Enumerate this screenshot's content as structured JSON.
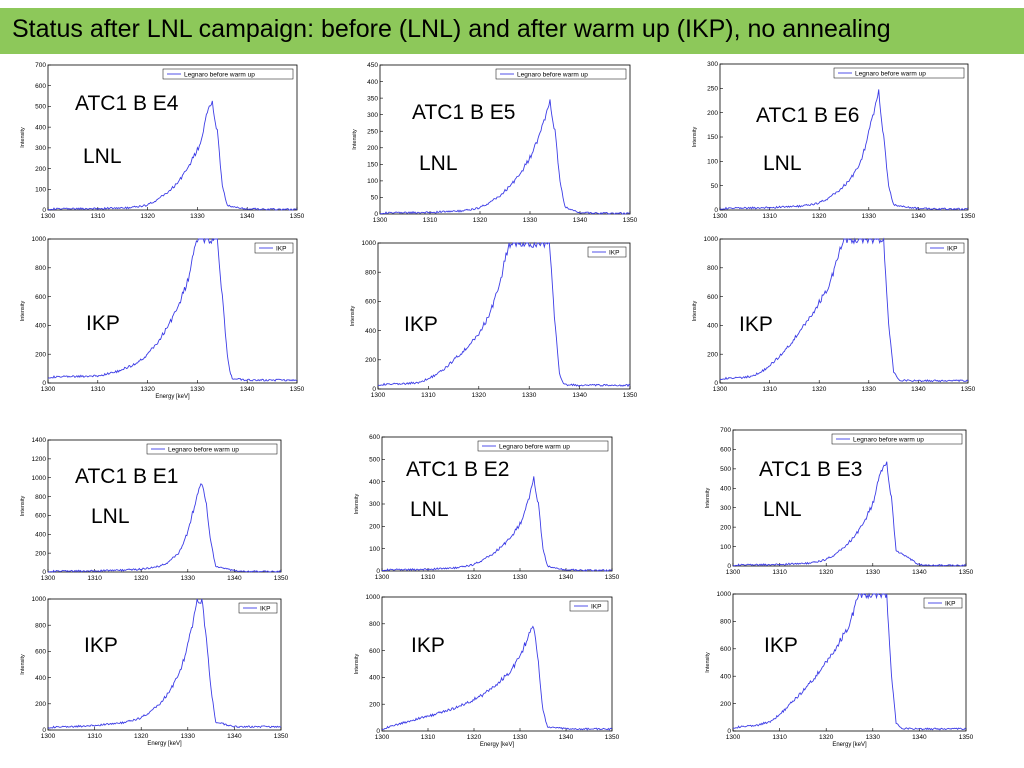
{
  "title": "Status after LNL campaign: before (LNL) and after warm up (IKP), no annealing",
  "colors": {
    "title_bar": "#8dc85a",
    "series": "#3d3de6"
  },
  "chart_data": [
    {
      "type": "line",
      "overlay_labels": [
        "ATC1 B E4",
        "LNL"
      ],
      "xlabel": "",
      "ylabel": "Intensity",
      "xlim": [
        1300,
        1350
      ],
      "ylim": [
        0,
        700
      ],
      "xticks": [
        1300,
        1310,
        1320,
        1330,
        1340,
        1350
      ],
      "yticks": [
        0,
        100,
        200,
        300,
        400,
        500,
        600,
        700
      ],
      "legend": "Legnaro before warm up",
      "legend_position": "top-right",
      "series": [
        {
          "name": "Legnaro before warm up",
          "x": [
            1300,
            1305,
            1310,
            1315,
            1318,
            1320,
            1322,
            1324,
            1326,
            1328,
            1330,
            1331,
            1332,
            1333,
            1334,
            1335,
            1336,
            1340,
            1345,
            1350
          ],
          "y": [
            5,
            6,
            7,
            9,
            15,
            25,
            50,
            85,
            130,
            200,
            290,
            350,
            480,
            510,
            380,
            120,
            20,
            5,
            3,
            3
          ]
        }
      ]
    },
    {
      "type": "line",
      "overlay_labels": [
        "ATC1 B E5",
        "LNL"
      ],
      "xlabel": "",
      "ylabel": "Intensity",
      "xlim": [
        1300,
        1350
      ],
      "ylim": [
        0,
        450
      ],
      "xticks": [
        1300,
        1310,
        1320,
        1330,
        1340,
        1350
      ],
      "yticks": [
        0,
        50,
        100,
        150,
        200,
        250,
        300,
        350,
        400,
        450
      ],
      "legend": "Legnaro before warm up",
      "legend_position": "top-right",
      "series": [
        {
          "name": "Legnaro before warm up",
          "x": [
            1300,
            1305,
            1310,
            1315,
            1318,
            1320,
            1322,
            1324,
            1326,
            1328,
            1330,
            1332,
            1333,
            1334,
            1335,
            1336,
            1337,
            1340,
            1345,
            1350
          ],
          "y": [
            3,
            4,
            5,
            8,
            12,
            20,
            35,
            55,
            85,
            120,
            170,
            240,
            290,
            335,
            250,
            100,
            20,
            4,
            2,
            2
          ]
        }
      ]
    },
    {
      "type": "line",
      "overlay_labels": [
        "ATC1 B E6",
        "LNL"
      ],
      "xlabel": "",
      "ylabel": "Intensity",
      "xlim": [
        1300,
        1350
      ],
      "ylim": [
        0,
        300
      ],
      "xticks": [
        1300,
        1310,
        1320,
        1330,
        1340,
        1350
      ],
      "yticks": [
        0,
        50,
        100,
        150,
        200,
        250,
        300
      ],
      "legend": "Legnaro before warm up",
      "legend_position": "top-right",
      "series": [
        {
          "name": "Legnaro before warm up",
          "x": [
            1300,
            1305,
            1310,
            1315,
            1318,
            1320,
            1322,
            1324,
            1326,
            1328,
            1329,
            1330,
            1331,
            1332,
            1333,
            1334,
            1335,
            1340,
            1345,
            1350
          ],
          "y": [
            3,
            4,
            5,
            7,
            10,
            15,
            25,
            40,
            60,
            90,
            120,
            160,
            200,
            240,
            150,
            50,
            10,
            3,
            2,
            2
          ]
        }
      ]
    },
    {
      "type": "line",
      "overlay_labels": [
        "IKP"
      ],
      "xlabel": "Energy [keV]",
      "ylabel": "Intensity",
      "xlim": [
        1300,
        1350
      ],
      "ylim": [
        0,
        1000
      ],
      "xticks": [
        1300,
        1310,
        1320,
        1330,
        1340,
        1350
      ],
      "yticks": [
        0,
        200,
        400,
        600,
        800,
        1000
      ],
      "legend": "IKP",
      "legend_position": "top-right",
      "series": [
        {
          "name": "IKP",
          "x": [
            1300,
            1305,
            1310,
            1313,
            1315,
            1318,
            1320,
            1322,
            1324,
            1326,
            1328,
            1329,
            1330,
            1334,
            1335,
            1336,
            1336.5,
            1337,
            1340,
            1345,
            1350
          ],
          "y": [
            40,
            45,
            50,
            70,
            95,
            140,
            200,
            280,
            390,
            520,
            700,
            860,
            1000,
            1000,
            600,
            200,
            80,
            30,
            20,
            20,
            20
          ]
        }
      ]
    },
    {
      "type": "line",
      "overlay_labels": [
        "IKP"
      ],
      "xlabel": "",
      "ylabel": "Intensity",
      "xlim": [
        1300,
        1350
      ],
      "ylim": [
        0,
        1000
      ],
      "xticks": [
        1300,
        1310,
        1320,
        1330,
        1340,
        1350
      ],
      "yticks": [
        0,
        200,
        400,
        600,
        800,
        1000
      ],
      "legend": "IKP",
      "legend_position": "top-right",
      "series": [
        {
          "name": "IKP",
          "x": [
            1300,
            1305,
            1308,
            1310,
            1313,
            1315,
            1318,
            1320,
            1322,
            1324,
            1326,
            1334,
            1335,
            1336,
            1337,
            1340,
            1345,
            1350
          ],
          "y": [
            30,
            35,
            45,
            70,
            130,
            200,
            290,
            380,
            500,
            700,
            1000,
            1000,
            500,
            100,
            30,
            25,
            25,
            25
          ]
        }
      ]
    },
    {
      "type": "line",
      "overlay_labels": [
        "IKP"
      ],
      "xlabel": "",
      "ylabel": "Intensity",
      "xlim": [
        1300,
        1350
      ],
      "ylim": [
        0,
        1000
      ],
      "xticks": [
        1300,
        1310,
        1320,
        1330,
        1340,
        1350
      ],
      "yticks": [
        0,
        200,
        400,
        600,
        800,
        1000
      ],
      "legend": "IKP",
      "legend_position": "top-right",
      "series": [
        {
          "name": "IKP",
          "x": [
            1300,
            1304,
            1306,
            1308,
            1310,
            1313,
            1316,
            1319,
            1322,
            1325,
            1333,
            1334,
            1335,
            1336,
            1340,
            1345,
            1350
          ],
          "y": [
            30,
            35,
            45,
            70,
            120,
            220,
            350,
            500,
            680,
            1000,
            1000,
            400,
            80,
            20,
            15,
            15,
            15
          ]
        }
      ]
    },
    {
      "type": "line",
      "overlay_labels": [
        "ATC1 B E1",
        "LNL"
      ],
      "xlabel": "",
      "ylabel": "Intensity",
      "xlim": [
        1300,
        1350
      ],
      "ylim": [
        0,
        1400
      ],
      "xticks": [
        1300,
        1310,
        1320,
        1330,
        1340,
        1350
      ],
      "yticks": [
        0,
        200,
        400,
        600,
        800,
        1000,
        1200,
        1400
      ],
      "legend": "Legnaro before warm up",
      "legend_position": "top-right",
      "series": [
        {
          "name": "Legnaro before warm up",
          "x": [
            1300,
            1305,
            1310,
            1315,
            1320,
            1324,
            1326,
            1328,
            1329,
            1330,
            1331,
            1332,
            1333,
            1334,
            1335,
            1336,
            1340,
            1345,
            1350
          ],
          "y": [
            8,
            10,
            12,
            18,
            30,
            60,
            110,
            200,
            300,
            430,
            620,
            800,
            950,
            700,
            300,
            60,
            10,
            5,
            5
          ]
        }
      ]
    },
    {
      "type": "line",
      "overlay_labels": [
        "ATC1 B E2",
        "LNL"
      ],
      "xlabel": "",
      "ylabel": "Intensity",
      "xlim": [
        1300,
        1350
      ],
      "ylim": [
        0,
        600
      ],
      "xticks": [
        1300,
        1310,
        1320,
        1330,
        1340,
        1350
      ],
      "yticks": [
        0,
        100,
        200,
        300,
        400,
        500,
        600
      ],
      "legend": "Legnaro before warm up",
      "legend_position": "top-right",
      "series": [
        {
          "name": "Legnaro before warm up",
          "x": [
            1300,
            1305,
            1310,
            1315,
            1318,
            1320,
            1322,
            1324,
            1326,
            1328,
            1330,
            1331,
            1332,
            1333,
            1334,
            1335,
            1336,
            1340,
            1345,
            1350
          ],
          "y": [
            5,
            6,
            8,
            12,
            20,
            30,
            50,
            75,
            110,
            150,
            210,
            260,
            330,
            410,
            300,
            100,
            20,
            5,
            3,
            3
          ]
        }
      ]
    },
    {
      "type": "line",
      "overlay_labels": [
        "ATC1 B E3",
        "LNL"
      ],
      "xlabel": "",
      "ylabel": "Intensity",
      "xlim": [
        1300,
        1350
      ],
      "ylim": [
        0,
        700
      ],
      "xticks": [
        1300,
        1310,
        1320,
        1330,
        1340,
        1350
      ],
      "yticks": [
        0,
        100,
        200,
        300,
        400,
        500,
        600,
        700
      ],
      "legend": "Legnaro before warm up",
      "legend_position": "top-right",
      "series": [
        {
          "name": "Legnaro before warm up",
          "x": [
            1300,
            1305,
            1310,
            1315,
            1318,
            1320,
            1322,
            1324,
            1326,
            1328,
            1330,
            1331,
            1332,
            1333,
            1334,
            1335,
            1340,
            1345,
            1350
          ],
          "y": [
            5,
            6,
            8,
            12,
            20,
            35,
            60,
            100,
            150,
            220,
            320,
            420,
            500,
            520,
            350,
            80,
            5,
            3,
            3
          ]
        }
      ]
    },
    {
      "type": "line",
      "overlay_labels": [
        "IKP"
      ],
      "xlabel": "Energy [keV]",
      "ylabel": "Intensity",
      "xlim": [
        1300,
        1350
      ],
      "ylim": [
        0,
        1000
      ],
      "xticks": [
        1300,
        1310,
        1320,
        1330,
        1340,
        1350
      ],
      "yticks": [
        0,
        200,
        400,
        600,
        800,
        1000
      ],
      "legend": "IKP",
      "legend_position": "top-right",
      "series": [
        {
          "name": "IKP",
          "x": [
            1300,
            1305,
            1310,
            1315,
            1318,
            1320,
            1322,
            1324,
            1326,
            1328,
            1329,
            1330,
            1331,
            1332,
            1333,
            1334,
            1335,
            1336,
            1340,
            1345,
            1350
          ],
          "y": [
            20,
            25,
            35,
            50,
            70,
            95,
            140,
            200,
            290,
            420,
            520,
            650,
            800,
            980,
            1000,
            700,
            300,
            60,
            25,
            25,
            25
          ]
        }
      ]
    },
    {
      "type": "line",
      "overlay_labels": [
        "IKP"
      ],
      "xlabel": "Energy [keV]",
      "ylabel": "Intensity",
      "xlim": [
        1300,
        1350
      ],
      "ylim": [
        0,
        1000
      ],
      "xticks": [
        1300,
        1310,
        1320,
        1330,
        1340,
        1350
      ],
      "yticks": [
        0,
        200,
        400,
        600,
        800,
        1000
      ],
      "legend": "IKP",
      "legend_position": "top-right",
      "series": [
        {
          "name": "IKP",
          "x": [
            1300,
            1303,
            1306,
            1310,
            1314,
            1318,
            1322,
            1325,
            1328,
            1330,
            1331,
            1332,
            1333,
            1334,
            1335,
            1336,
            1340,
            1345,
            1350
          ],
          "y": [
            15,
            45,
            75,
            110,
            150,
            200,
            270,
            350,
            450,
            560,
            640,
            720,
            780,
            500,
            150,
            30,
            15,
            15,
            15
          ]
        }
      ]
    },
    {
      "type": "line",
      "overlay_labels": [
        "IKP"
      ],
      "xlabel": "Energy [keV]",
      "ylabel": "Intensity",
      "xlim": [
        1300,
        1350
      ],
      "ylim": [
        0,
        1000
      ],
      "xticks": [
        1300,
        1310,
        1320,
        1330,
        1340,
        1350
      ],
      "yticks": [
        0,
        200,
        400,
        600,
        800,
        1000
      ],
      "legend": "IKP",
      "legend_position": "top-right",
      "series": [
        {
          "name": "IKP",
          "x": [
            1300,
            1305,
            1308,
            1310,
            1313,
            1316,
            1319,
            1322,
            1325,
            1327,
            1333,
            1334,
            1335,
            1336,
            1340,
            1345,
            1350
          ],
          "y": [
            25,
            40,
            70,
            120,
            220,
            330,
            450,
            600,
            780,
            1000,
            1000,
            400,
            60,
            20,
            15,
            15,
            15
          ]
        }
      ]
    }
  ]
}
